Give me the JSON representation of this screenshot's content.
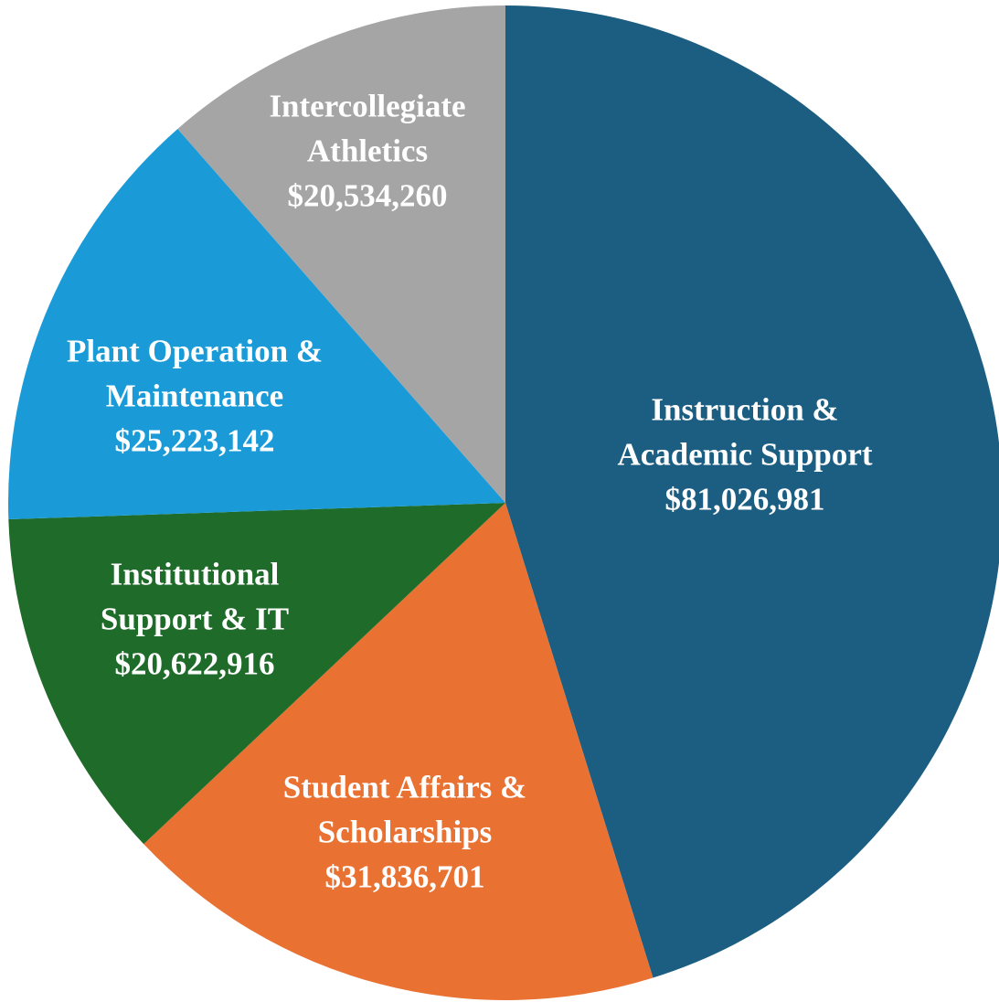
{
  "chart_data": {
    "type": "pie",
    "categories": [
      "Instruction & Academic Support",
      "Student Affairs & Scholarships",
      "Institutional Support & IT",
      "Plant Operation & Maintenance",
      "Intercollegiate Athletics"
    ],
    "values": [
      81026981,
      31836701,
      20622916,
      25223142,
      20534260
    ],
    "value_labels": [
      "$81,026,981",
      "$31,836,701",
      "$20,622,916",
      "$25,223,142",
      "$20,534,260"
    ],
    "colors": [
      "#1b5e82",
      "#e97132",
      "#1e6b2a",
      "#1a9bd7",
      "#a5a5a5"
    ]
  }
}
